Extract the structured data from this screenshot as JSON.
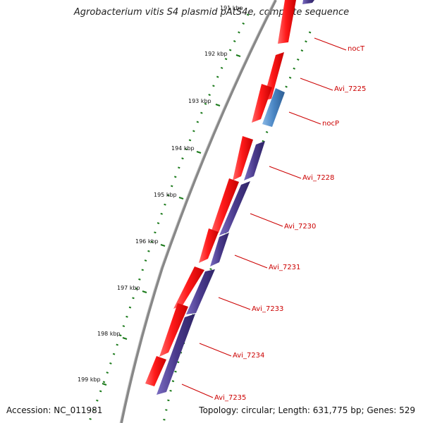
{
  "title": "Agrobacterium vitis S4 plasmid pAtS4e, complete sequence",
  "footer": {
    "accession": "Accession: NC_011981",
    "summary": "Topology: circular; Length: 631,775 bp; Genes: 529"
  },
  "colors": {
    "forward_gene": "#ff0000",
    "reverse_gene": "#4a3a8c",
    "rna_gene": "#4a86c4",
    "tick": "#1a7a1a",
    "backbone": "#808080",
    "label": "#cc0000"
  },
  "scale_labels": [
    "191 kbp",
    "192 kbp",
    "193 kbp",
    "194 kbp",
    "195 kbp",
    "196 kbp",
    "197 kbp",
    "198 kbp",
    "199 kbp"
  ],
  "gene_labels": [
    "nocT",
    "Avi_7225",
    "nocP",
    "Avi_7228",
    "Avi_7230",
    "Avi_7231",
    "Avi_7233",
    "Avi_7234",
    "Avi_7235"
  ]
}
